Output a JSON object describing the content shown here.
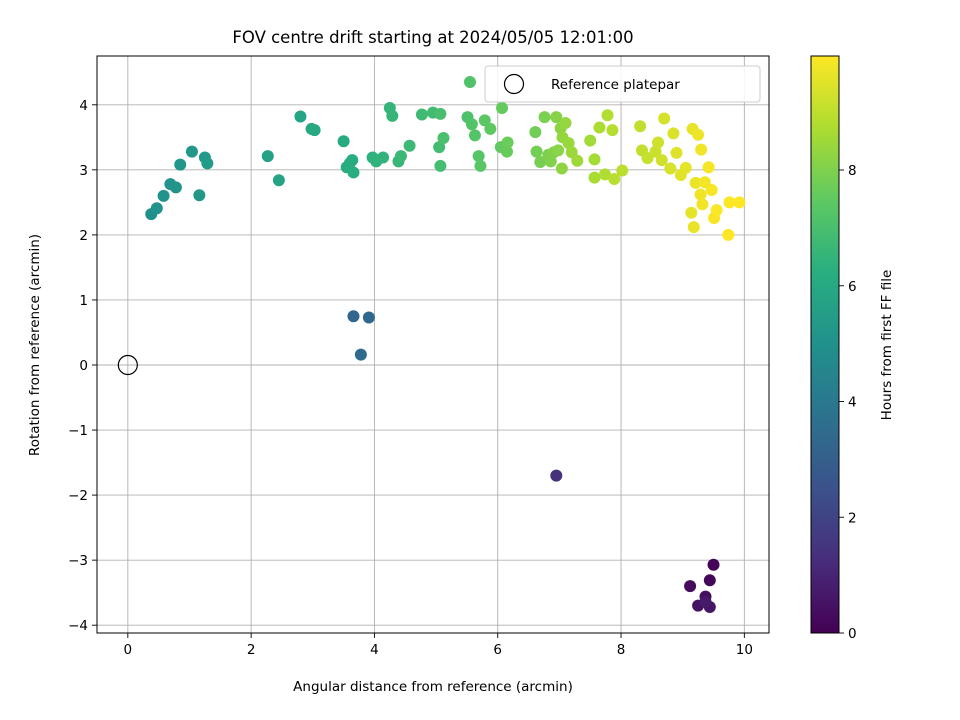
{
  "chart_data": {
    "type": "scatter",
    "title": "FOV centre drift starting at 2024/05/05 12:01:00",
    "xlabel": "Angular distance from reference (arcmin)",
    "ylabel": "Rotation from reference (arcmin)",
    "xlim": [
      -0.5,
      10.4
    ],
    "ylim": [
      -4.12,
      4.75
    ],
    "xticks": [
      0,
      2,
      4,
      6,
      8,
      10
    ],
    "xtick_labels": [
      "0",
      "2",
      "4",
      "6",
      "8",
      "10"
    ],
    "yticks": [
      -4,
      -3,
      -2,
      -1,
      0,
      1,
      2,
      3,
      4
    ],
    "ytick_labels": [
      "−4",
      "−3",
      "−2",
      "−1",
      "0",
      "1",
      "2",
      "3",
      "4"
    ],
    "grid": true,
    "legend": {
      "placement": "top-right",
      "entries": [
        "Reference platepar"
      ]
    },
    "reference_point": {
      "x": 0,
      "y": 0,
      "label": "Reference platepar",
      "marker": "open-circle"
    },
    "colorbar": {
      "label": "Hours from first FF file",
      "colormap": "viridis",
      "range": [
        0,
        9.97
      ],
      "ticks": [
        0,
        2,
        4,
        6,
        8
      ],
      "tick_labels": [
        "0",
        "2",
        "4",
        "6",
        "8"
      ]
    },
    "series": [
      {
        "color_by": "hours",
        "points": [
          {
            "x": 9.5,
            "y": -3.07,
            "c": 0.1
          },
          {
            "x": 9.44,
            "y": -3.31,
            "c": 0.2
          },
          {
            "x": 9.12,
            "y": -3.4,
            "c": 0.3
          },
          {
            "x": 9.37,
            "y": -3.56,
            "c": 0.4
          },
          {
            "x": 9.25,
            "y": -3.7,
            "c": 0.5
          },
          {
            "x": 9.44,
            "y": -3.72,
            "c": 0.6
          },
          {
            "x": 9.37,
            "y": -3.64,
            "c": 0.7
          },
          {
            "x": 6.95,
            "y": -1.7,
            "c": 1.4
          },
          {
            "x": 3.66,
            "y": 0.75,
            "c": 3.3
          },
          {
            "x": 3.91,
            "y": 0.73,
            "c": 3.4
          },
          {
            "x": 3.78,
            "y": 0.16,
            "c": 3.5
          },
          {
            "x": 0.38,
            "y": 2.32,
            "c": 5.0
          },
          {
            "x": 0.47,
            "y": 2.41,
            "c": 5.05
          },
          {
            "x": 0.58,
            "y": 2.6,
            "c": 5.1
          },
          {
            "x": 0.69,
            "y": 2.78,
            "c": 5.15
          },
          {
            "x": 0.78,
            "y": 2.73,
            "c": 5.2
          },
          {
            "x": 0.85,
            "y": 3.08,
            "c": 5.25
          },
          {
            "x": 1.04,
            "y": 3.28,
            "c": 5.3
          },
          {
            "x": 1.16,
            "y": 2.61,
            "c": 5.35
          },
          {
            "x": 1.25,
            "y": 3.19,
            "c": 5.4
          },
          {
            "x": 1.29,
            "y": 3.1,
            "c": 5.45
          },
          {
            "x": 2.27,
            "y": 3.21,
            "c": 5.7
          },
          {
            "x": 2.45,
            "y": 2.84,
            "c": 5.8
          },
          {
            "x": 2.8,
            "y": 3.82,
            "c": 5.9
          },
          {
            "x": 2.98,
            "y": 3.63,
            "c": 6.0
          },
          {
            "x": 3.03,
            "y": 3.61,
            "c": 6.05
          },
          {
            "x": 3.5,
            "y": 3.44,
            "c": 6.1
          },
          {
            "x": 3.55,
            "y": 3.04,
            "c": 6.15
          },
          {
            "x": 3.6,
            "y": 3.1,
            "c": 6.2
          },
          {
            "x": 3.64,
            "y": 3.15,
            "c": 6.25
          },
          {
            "x": 3.66,
            "y": 2.96,
            "c": 6.3
          },
          {
            "x": 3.97,
            "y": 3.19,
            "c": 6.4
          },
          {
            "x": 4.03,
            "y": 3.13,
            "c": 6.45
          },
          {
            "x": 4.14,
            "y": 3.19,
            "c": 6.5
          },
          {
            "x": 4.25,
            "y": 3.95,
            "c": 6.55
          },
          {
            "x": 4.29,
            "y": 3.83,
            "c": 6.6
          },
          {
            "x": 4.39,
            "y": 3.13,
            "c": 6.65
          },
          {
            "x": 4.43,
            "y": 3.21,
            "c": 6.7
          },
          {
            "x": 4.57,
            "y": 3.37,
            "c": 6.75
          },
          {
            "x": 4.77,
            "y": 3.85,
            "c": 6.8
          },
          {
            "x": 4.95,
            "y": 3.88,
            "c": 6.85
          },
          {
            "x": 5.05,
            "y": 3.35,
            "c": 6.9
          },
          {
            "x": 5.07,
            "y": 3.06,
            "c": 6.95
          },
          {
            "x": 5.07,
            "y": 3.86,
            "c": 7.0
          },
          {
            "x": 5.12,
            "y": 3.49,
            "c": 7.05
          },
          {
            "x": 5.51,
            "y": 3.81,
            "c": 7.15
          },
          {
            "x": 5.55,
            "y": 4.35,
            "c": 7.2
          },
          {
            "x": 5.58,
            "y": 3.7,
            "c": 7.25
          },
          {
            "x": 5.63,
            "y": 3.53,
            "c": 7.3
          },
          {
            "x": 5.69,
            "y": 3.21,
            "c": 7.35
          },
          {
            "x": 5.72,
            "y": 3.06,
            "c": 7.4
          },
          {
            "x": 5.79,
            "y": 3.76,
            "c": 7.45
          },
          {
            "x": 5.88,
            "y": 3.63,
            "c": 7.5
          },
          {
            "x": 6.05,
            "y": 3.35,
            "c": 7.55
          },
          {
            "x": 6.07,
            "y": 3.95,
            "c": 7.6
          },
          {
            "x": 6.15,
            "y": 3.28,
            "c": 7.65
          },
          {
            "x": 6.16,
            "y": 3.42,
            "c": 7.7
          },
          {
            "x": 6.61,
            "y": 3.58,
            "c": 7.8
          },
          {
            "x": 6.63,
            "y": 3.28,
            "c": 7.85
          },
          {
            "x": 6.69,
            "y": 3.12,
            "c": 7.9
          },
          {
            "x": 6.76,
            "y": 3.81,
            "c": 7.95
          },
          {
            "x": 6.82,
            "y": 3.23,
            "c": 8.0
          },
          {
            "x": 6.86,
            "y": 3.13,
            "c": 8.05
          },
          {
            "x": 6.91,
            "y": 3.27,
            "c": 8.1
          },
          {
            "x": 6.95,
            "y": 3.81,
            "c": 8.15
          },
          {
            "x": 6.98,
            "y": 3.3,
            "c": 8.2
          },
          {
            "x": 7.02,
            "y": 3.64,
            "c": 8.25
          },
          {
            "x": 7.04,
            "y": 3.02,
            "c": 8.3
          },
          {
            "x": 7.05,
            "y": 3.5,
            "c": 8.35
          },
          {
            "x": 7.1,
            "y": 3.72,
            "c": 8.4
          },
          {
            "x": 7.15,
            "y": 3.41,
            "c": 8.45
          },
          {
            "x": 7.2,
            "y": 3.27,
            "c": 8.5
          },
          {
            "x": 7.29,
            "y": 3.14,
            "c": 8.55
          },
          {
            "x": 7.5,
            "y": 3.45,
            "c": 8.6
          },
          {
            "x": 7.57,
            "y": 3.16,
            "c": 8.65
          },
          {
            "x": 7.57,
            "y": 2.88,
            "c": 8.7
          },
          {
            "x": 7.65,
            "y": 3.65,
            "c": 8.75
          },
          {
            "x": 7.74,
            "y": 2.93,
            "c": 8.8
          },
          {
            "x": 7.78,
            "y": 3.84,
            "c": 8.85
          },
          {
            "x": 7.86,
            "y": 3.61,
            "c": 8.9
          },
          {
            "x": 7.89,
            "y": 2.86,
            "c": 8.95
          },
          {
            "x": 8.02,
            "y": 2.99,
            "c": 9.0
          },
          {
            "x": 8.31,
            "y": 3.67,
            "c": 9.05
          },
          {
            "x": 8.34,
            "y": 3.3,
            "c": 9.1
          },
          {
            "x": 8.43,
            "y": 3.18,
            "c": 9.15
          },
          {
            "x": 8.56,
            "y": 3.28,
            "c": 9.2
          },
          {
            "x": 8.6,
            "y": 3.42,
            "c": 9.25
          },
          {
            "x": 8.66,
            "y": 3.15,
            "c": 9.3
          },
          {
            "x": 8.7,
            "y": 3.79,
            "c": 9.35
          },
          {
            "x": 8.8,
            "y": 3.02,
            "c": 9.4
          },
          {
            "x": 8.85,
            "y": 3.56,
            "c": 9.45
          },
          {
            "x": 8.9,
            "y": 3.26,
            "c": 9.5
          },
          {
            "x": 8.97,
            "y": 2.92,
            "c": 9.55
          },
          {
            "x": 9.05,
            "y": 3.03,
            "c": 9.6
          },
          {
            "x": 9.14,
            "y": 2.34,
            "c": 9.62
          },
          {
            "x": 9.16,
            "y": 3.63,
            "c": 9.65
          },
          {
            "x": 9.18,
            "y": 2.12,
            "c": 9.67
          },
          {
            "x": 9.21,
            "y": 2.8,
            "c": 9.7
          },
          {
            "x": 9.25,
            "y": 3.54,
            "c": 9.72
          },
          {
            "x": 9.29,
            "y": 2.62,
            "c": 9.75
          },
          {
            "x": 9.3,
            "y": 3.31,
            "c": 9.77
          },
          {
            "x": 9.32,
            "y": 2.47,
            "c": 9.8
          },
          {
            "x": 9.36,
            "y": 2.81,
            "c": 9.82
          },
          {
            "x": 9.42,
            "y": 3.04,
            "c": 9.85
          },
          {
            "x": 9.47,
            "y": 2.69,
            "c": 9.87
          },
          {
            "x": 9.51,
            "y": 2.26,
            "c": 9.9
          },
          {
            "x": 9.55,
            "y": 2.38,
            "c": 9.92
          },
          {
            "x": 9.74,
            "y": 2.0,
            "c": 9.94
          },
          {
            "x": 9.76,
            "y": 2.5,
            "c": 9.96
          },
          {
            "x": 9.92,
            "y": 2.5,
            "c": 9.97
          }
        ]
      }
    ]
  }
}
